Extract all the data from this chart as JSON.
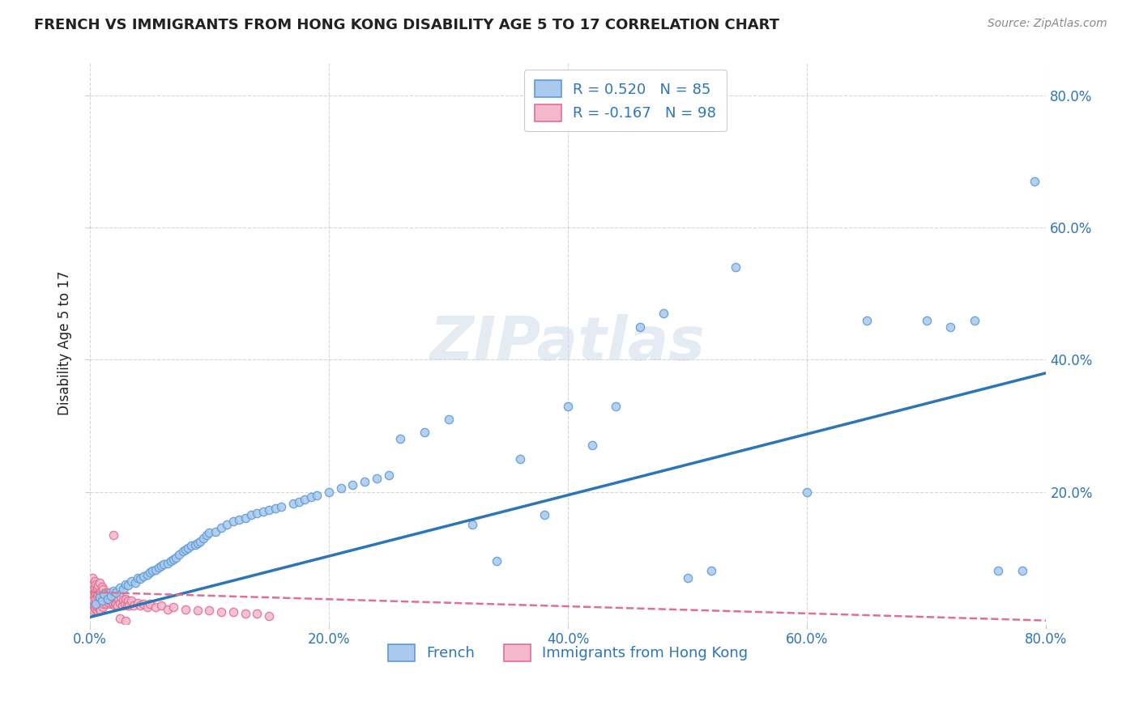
{
  "title": "FRENCH VS IMMIGRANTS FROM HONG KONG DISABILITY AGE 5 TO 17 CORRELATION CHART",
  "source": "Source: ZipAtlas.com",
  "ylabel": "Disability Age 5 to 17",
  "xlim": [
    0.0,
    0.8
  ],
  "ylim": [
    0.0,
    0.85
  ],
  "xticks": [
    0.0,
    0.2,
    0.4,
    0.6,
    0.8
  ],
  "yticks": [
    0.2,
    0.4,
    0.6,
    0.8
  ],
  "ytick_labels": [
    "20.0%",
    "40.0%",
    "60.0%",
    "80.0%"
  ],
  "xtick_labels": [
    "0.0%",
    "20.0%",
    "40.0%",
    "60.0%",
    "80.0%"
  ],
  "french_color": "#aac9ee",
  "french_edge": "#5b9bd5",
  "hk_color": "#f4b8cc",
  "hk_edge": "#e07090",
  "trend_french_color": "#2e75b6",
  "trend_hk_color": "#e07090",
  "legend_french_label": "R = 0.520   N = 85",
  "legend_hk_label": "R = -0.167   N = 98",
  "legend_bottom_french": "French",
  "legend_bottom_hk": "Immigrants from Hong Kong",
  "watermark": "ZIPatlas",
  "background_color": "#ffffff",
  "grid_color": "#cccccc",
  "title_color": "#222222",
  "axis_label_color": "#2e75b6",
  "marker_size": 55,
  "french_x": [
    0.005,
    0.008,
    0.01,
    0.012,
    0.015,
    0.018,
    0.02,
    0.022,
    0.025,
    0.028,
    0.03,
    0.032,
    0.035,
    0.038,
    0.04,
    0.042,
    0.045,
    0.048,
    0.05,
    0.052,
    0.055,
    0.058,
    0.06,
    0.062,
    0.065,
    0.068,
    0.07,
    0.072,
    0.075,
    0.078,
    0.08,
    0.082,
    0.085,
    0.088,
    0.09,
    0.092,
    0.095,
    0.098,
    0.1,
    0.105,
    0.11,
    0.115,
    0.12,
    0.125,
    0.13,
    0.135,
    0.14,
    0.145,
    0.15,
    0.155,
    0.16,
    0.17,
    0.175,
    0.18,
    0.185,
    0.19,
    0.2,
    0.21,
    0.22,
    0.23,
    0.24,
    0.25,
    0.26,
    0.28,
    0.3,
    0.32,
    0.34,
    0.36,
    0.38,
    0.4,
    0.42,
    0.44,
    0.46,
    0.48,
    0.5,
    0.52,
    0.54,
    0.6,
    0.65,
    0.7,
    0.72,
    0.74,
    0.76,
    0.78,
    0.79
  ],
  "french_y": [
    0.03,
    0.04,
    0.035,
    0.045,
    0.038,
    0.042,
    0.05,
    0.048,
    0.055,
    0.052,
    0.06,
    0.058,
    0.065,
    0.062,
    0.07,
    0.068,
    0.072,
    0.075,
    0.078,
    0.08,
    0.082,
    0.085,
    0.088,
    0.09,
    0.092,
    0.095,
    0.098,
    0.1,
    0.105,
    0.11,
    0.112,
    0.115,
    0.118,
    0.12,
    0.122,
    0.125,
    0.13,
    0.135,
    0.138,
    0.14,
    0.145,
    0.15,
    0.155,
    0.158,
    0.16,
    0.165,
    0.168,
    0.17,
    0.172,
    0.175,
    0.178,
    0.182,
    0.185,
    0.188,
    0.192,
    0.195,
    0.2,
    0.205,
    0.21,
    0.215,
    0.22,
    0.225,
    0.28,
    0.29,
    0.31,
    0.15,
    0.095,
    0.25,
    0.165,
    0.33,
    0.27,
    0.33,
    0.45,
    0.47,
    0.07,
    0.08,
    0.54,
    0.2,
    0.46,
    0.46,
    0.45,
    0.46,
    0.08,
    0.08,
    0.67
  ],
  "hk_x": [
    0.001,
    0.001,
    0.001,
    0.002,
    0.002,
    0.002,
    0.002,
    0.003,
    0.003,
    0.003,
    0.003,
    0.003,
    0.004,
    0.004,
    0.004,
    0.004,
    0.004,
    0.005,
    0.005,
    0.005,
    0.005,
    0.005,
    0.006,
    0.006,
    0.006,
    0.006,
    0.007,
    0.007,
    0.007,
    0.007,
    0.008,
    0.008,
    0.008,
    0.008,
    0.009,
    0.009,
    0.009,
    0.01,
    0.01,
    0.01,
    0.011,
    0.011,
    0.011,
    0.012,
    0.012,
    0.013,
    0.013,
    0.014,
    0.014,
    0.015,
    0.015,
    0.016,
    0.016,
    0.017,
    0.017,
    0.018,
    0.018,
    0.019,
    0.019,
    0.02,
    0.02,
    0.021,
    0.021,
    0.022,
    0.022,
    0.023,
    0.024,
    0.025,
    0.026,
    0.027,
    0.028,
    0.029,
    0.03,
    0.031,
    0.032,
    0.033,
    0.035,
    0.037,
    0.04,
    0.042,
    0.045,
    0.048,
    0.05,
    0.055,
    0.06,
    0.065,
    0.07,
    0.08,
    0.09,
    0.1,
    0.11,
    0.12,
    0.13,
    0.14,
    0.15,
    0.02,
    0.025,
    0.03
  ],
  "hk_y": [
    0.03,
    0.045,
    0.06,
    0.025,
    0.04,
    0.055,
    0.07,
    0.03,
    0.045,
    0.06,
    0.02,
    0.035,
    0.03,
    0.045,
    0.055,
    0.065,
    0.025,
    0.035,
    0.048,
    0.06,
    0.022,
    0.038,
    0.03,
    0.042,
    0.055,
    0.02,
    0.032,
    0.045,
    0.058,
    0.025,
    0.035,
    0.048,
    0.062,
    0.022,
    0.033,
    0.045,
    0.02,
    0.032,
    0.044,
    0.056,
    0.025,
    0.038,
    0.052,
    0.03,
    0.042,
    0.035,
    0.048,
    0.03,
    0.043,
    0.035,
    0.048,
    0.032,
    0.045,
    0.035,
    0.048,
    0.03,
    0.042,
    0.032,
    0.044,
    0.03,
    0.042,
    0.028,
    0.04,
    0.03,
    0.042,
    0.028,
    0.038,
    0.032,
    0.04,
    0.028,
    0.036,
    0.03,
    0.038,
    0.028,
    0.035,
    0.028,
    0.035,
    0.028,
    0.032,
    0.028,
    0.03,
    0.025,
    0.03,
    0.025,
    0.028,
    0.022,
    0.025,
    0.022,
    0.02,
    0.02,
    0.018,
    0.018,
    0.015,
    0.015,
    0.012,
    0.135,
    0.008,
    0.005
  ],
  "trend_french_x0": 0.0,
  "trend_french_y0": 0.01,
  "trend_french_x1": 0.8,
  "trend_french_y1": 0.38,
  "trend_hk_x0": 0.0,
  "trend_hk_y0": 0.048,
  "trend_hk_x1": 0.8,
  "trend_hk_y1": 0.005
}
